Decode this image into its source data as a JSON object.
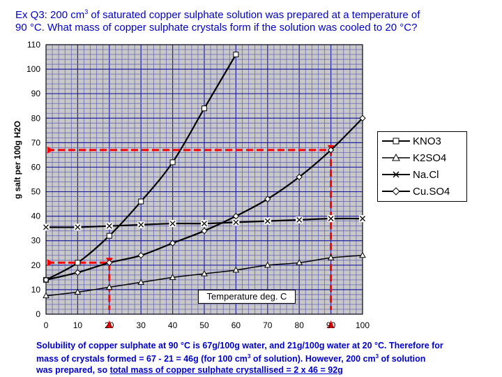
{
  "question": {
    "part1": "Ex Q3: 200 cm",
    "sup": "3",
    "part2": " of saturated copper sulphate solution was prepared at a temperature of",
    "line2": "90 °C. What mass of copper sulphate crystals form if the solution was cooled to 20 °C?"
  },
  "caption": {
    "l1": "Solubility of copper sulphate at 90 °C is 67g/100g water, and 21g/100g water at 20 °C. Therefore for",
    "l2a": "mass of crystals formed = 67 - 21 = 46g (for 100 cm",
    "l2sup": "3",
    "l2b": " of solution).  However, 200 cm",
    "l2sup2": "3",
    "l2c": " of solution",
    "l3a": "was prepared, so ",
    "l3u": "total mass of copper sulphate crystallised = 2 x 46 = 92g"
  },
  "colors": {
    "text_blue": "#0000cc",
    "plot_bg": "#c8c8c8",
    "grid_minor": "#6868b8",
    "grid_major": "#2020a0",
    "annotation": "#ff0000"
  },
  "chart_data": {
    "type": "line",
    "title": "",
    "xlabel": "Temperature deg. C",
    "ylabel": "g salt per 100g H2O",
    "xlim": [
      0,
      100
    ],
    "ylim": [
      0,
      110
    ],
    "x_ticks": [
      "0",
      "10",
      "20",
      "30",
      "40",
      "50",
      "60",
      "70",
      "80",
      "90",
      "100"
    ],
    "y_ticks": [
      "0",
      "10",
      "20",
      "30",
      "40",
      "50",
      "60",
      "70",
      "80",
      "90",
      "100",
      "110"
    ],
    "grid": true,
    "legend_position": "right",
    "series": [
      {
        "name": "KNO3",
        "marker": "square",
        "points": [
          [
            0,
            14
          ],
          [
            10,
            21
          ],
          [
            20,
            32
          ],
          [
            30,
            46
          ],
          [
            40,
            62
          ],
          [
            50,
            84
          ],
          [
            60,
            106
          ]
        ]
      },
      {
        "name": "K2SO4",
        "marker": "triangle",
        "points": [
          [
            0,
            7.5
          ],
          [
            10,
            9
          ],
          [
            20,
            11
          ],
          [
            30,
            13
          ],
          [
            40,
            15
          ],
          [
            50,
            16.5
          ],
          [
            60,
            18
          ],
          [
            70,
            20
          ],
          [
            80,
            21
          ],
          [
            90,
            23
          ],
          [
            100,
            24
          ]
        ]
      },
      {
        "name": "Na.Cl",
        "marker": "x",
        "points": [
          [
            0,
            35.5
          ],
          [
            10,
            35.5
          ],
          [
            20,
            36
          ],
          [
            30,
            36.5
          ],
          [
            40,
            37
          ],
          [
            50,
            37
          ],
          [
            60,
            37.5
          ],
          [
            70,
            38
          ],
          [
            80,
            38.5
          ],
          [
            90,
            39
          ],
          [
            100,
            39
          ]
        ]
      },
      {
        "name": "Cu.SO4",
        "marker": "diamond",
        "points": [
          [
            0,
            14
          ],
          [
            10,
            17
          ],
          [
            20,
            21
          ],
          [
            30,
            24
          ],
          [
            40,
            29
          ],
          [
            50,
            34
          ],
          [
            60,
            40
          ],
          [
            70,
            47
          ],
          [
            80,
            56
          ],
          [
            90,
            67
          ],
          [
            100,
            80
          ]
        ]
      }
    ],
    "annotations": [
      {
        "x": 90,
        "y": 67,
        "color": "#ff0000"
      },
      {
        "x": 20,
        "y": 21,
        "color": "#ff0000"
      }
    ]
  }
}
